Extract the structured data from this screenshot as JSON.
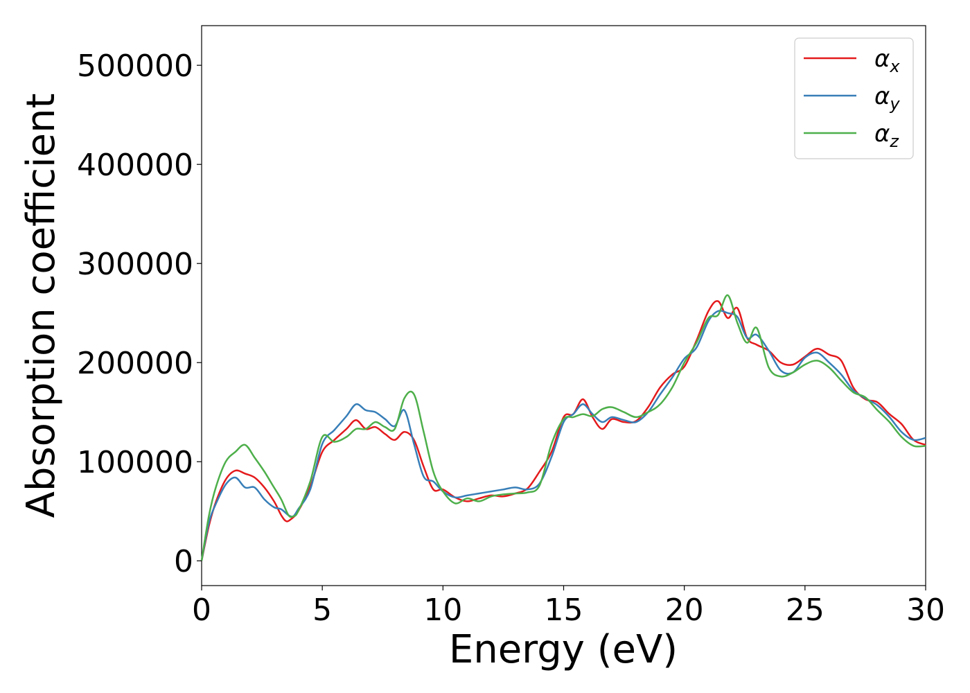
{
  "chart_data": {
    "type": "line",
    "xlabel": "Energy (eV)",
    "ylabel": "Absorption coefficient",
    "xlim": [
      0,
      30
    ],
    "ylim": [
      -25000,
      540000
    ],
    "x_ticks": [
      "0",
      "5",
      "10",
      "15",
      "20",
      "25",
      "30"
    ],
    "y_ticks": [
      "0",
      "100000",
      "200000",
      "300000",
      "400000",
      "500000"
    ],
    "legend_placement": "top-right",
    "grid": false,
    "series": [
      {
        "name": "αx",
        "base": "α",
        "sub": "x",
        "color": "#e41a1c",
        "x": [
          0,
          0.3,
          0.6,
          1.0,
          1.4,
          1.8,
          2.2,
          2.6,
          3.0,
          3.3,
          3.5,
          3.7,
          4.0,
          4.5,
          5.0,
          5.5,
          6.0,
          6.4,
          6.8,
          7.2,
          7.6,
          8.0,
          8.4,
          8.8,
          9.2,
          9.6,
          10.0,
          10.5,
          11.0,
          11.5,
          12.0,
          12.5,
          13.0,
          13.5,
          14.0,
          14.5,
          15.0,
          15.4,
          15.8,
          16.2,
          16.6,
          17.0,
          17.5,
          18.0,
          18.5,
          19.0,
          19.5,
          20.0,
          20.5,
          21.0,
          21.4,
          21.8,
          22.2,
          22.6,
          23.0,
          23.5,
          24.0,
          24.5,
          25.0,
          25.5,
          26.0,
          26.5,
          27.0,
          27.5,
          28.0,
          28.5,
          29.0,
          29.5,
          30.0
        ],
        "y": [
          0,
          35000,
          60000,
          82000,
          91000,
          88000,
          84000,
          74000,
          60000,
          46000,
          40000,
          42000,
          50000,
          75000,
          110000,
          122000,
          133000,
          142000,
          133000,
          135000,
          128000,
          122000,
          130000,
          122000,
          95000,
          72000,
          72000,
          64000,
          60000,
          63000,
          66000,
          65000,
          68000,
          73000,
          90000,
          110000,
          145000,
          148000,
          163000,
          145000,
          133000,
          143000,
          140000,
          141000,
          155000,
          175000,
          188000,
          196000,
          222000,
          252000,
          262000,
          245000,
          255000,
          225000,
          218000,
          212000,
          200000,
          198000,
          206000,
          214000,
          208000,
          202000,
          175000,
          163000,
          160000,
          148000,
          138000,
          122000,
          117000
        ]
      },
      {
        "name": "αy",
        "base": "α",
        "sub": "y",
        "color": "#377eb8",
        "x": [
          0,
          0.3,
          0.6,
          1.0,
          1.4,
          1.8,
          2.2,
          2.6,
          3.0,
          3.3,
          3.6,
          3.8,
          4.0,
          4.5,
          5.0,
          5.5,
          6.0,
          6.4,
          6.8,
          7.2,
          7.6,
          8.0,
          8.4,
          8.8,
          9.2,
          9.6,
          10.0,
          10.5,
          11.0,
          11.5,
          12.0,
          12.5,
          13.0,
          13.5,
          14.0,
          14.5,
          15.0,
          15.4,
          15.8,
          16.2,
          16.6,
          17.0,
          17.5,
          18.0,
          18.5,
          19.0,
          19.5,
          20.0,
          20.5,
          21.0,
          21.4,
          21.8,
          22.2,
          22.6,
          23.0,
          23.5,
          24.0,
          24.5,
          25.0,
          25.5,
          26.0,
          26.5,
          27.0,
          27.5,
          28.0,
          28.5,
          29.0,
          29.5,
          30.0
        ],
        "y": [
          0,
          38000,
          58000,
          77000,
          84000,
          74000,
          74000,
          62000,
          54000,
          52000,
          46000,
          45000,
          52000,
          72000,
          118000,
          132000,
          146000,
          158000,
          152000,
          150000,
          143000,
          136000,
          152000,
          118000,
          85000,
          80000,
          70000,
          64000,
          66000,
          68000,
          70000,
          72000,
          74000,
          72000,
          78000,
          105000,
          140000,
          148000,
          158000,
          148000,
          140000,
          145000,
          142000,
          140000,
          150000,
          168000,
          185000,
          204000,
          215000,
          242000,
          252000,
          250000,
          246000,
          225000,
          228000,
          212000,
          192000,
          190000,
          205000,
          210000,
          200000,
          188000,
          172000,
          164000,
          157000,
          145000,
          130000,
          122000,
          124000
        ]
      },
      {
        "name": "αz",
        "base": "α",
        "sub": "z",
        "color": "#4daf4a",
        "x": [
          0,
          0.3,
          0.6,
          1.0,
          1.4,
          1.8,
          2.2,
          2.6,
          3.0,
          3.3,
          3.6,
          3.8,
          4.0,
          4.5,
          5.0,
          5.5,
          6.0,
          6.4,
          6.8,
          7.2,
          7.6,
          8.0,
          8.4,
          8.8,
          9.2,
          9.6,
          10.0,
          10.5,
          11.0,
          11.5,
          12.0,
          12.5,
          13.0,
          13.5,
          14.0,
          14.5,
          15.0,
          15.4,
          15.8,
          16.2,
          16.6,
          17.0,
          17.5,
          18.0,
          18.5,
          19.0,
          19.5,
          20.0,
          20.5,
          21.0,
          21.4,
          21.8,
          22.2,
          22.6,
          23.0,
          23.5,
          24.0,
          24.5,
          25.0,
          25.5,
          26.0,
          26.5,
          27.0,
          27.5,
          28.0,
          28.5,
          29.0,
          29.5,
          30.0
        ],
        "y": [
          0,
          45000,
          75000,
          100000,
          110000,
          117000,
          104000,
          90000,
          74000,
          62000,
          46000,
          45000,
          50000,
          80000,
          125000,
          120000,
          125000,
          133000,
          133000,
          140000,
          135000,
          133000,
          164000,
          168000,
          130000,
          90000,
          70000,
          58000,
          63000,
          60000,
          65000,
          67000,
          68000,
          69000,
          76000,
          118000,
          143000,
          145000,
          148000,
          146000,
          153000,
          155000,
          150000,
          145000,
          150000,
          158000,
          175000,
          200000,
          220000,
          245000,
          248000,
          268000,
          240000,
          220000,
          235000,
          195000,
          186000,
          190000,
          198000,
          202000,
          195000,
          182000,
          170000,
          165000,
          152000,
          140000,
          125000,
          116000,
          116000
        ]
      }
    ]
  }
}
